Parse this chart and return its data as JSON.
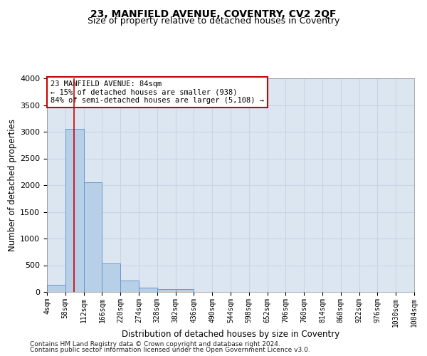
{
  "title1": "23, MANFIELD AVENUE, COVENTRY, CV2 2QF",
  "title2": "Size of property relative to detached houses in Coventry",
  "xlabel": "Distribution of detached houses by size in Coventry",
  "ylabel": "Number of detached properties",
  "footer1": "Contains HM Land Registry data © Crown copyright and database right 2024.",
  "footer2": "Contains public sector information licensed under the Open Government Licence v3.0.",
  "annotation_line1": "23 MANFIELD AVENUE: 84sqm",
  "annotation_line2": "← 15% of detached houses are smaller (938)",
  "annotation_line3": "84% of semi-detached houses are larger (5,108) →",
  "property_size": 84,
  "bin_edges": [
    4,
    58,
    112,
    166,
    220,
    274,
    328,
    382,
    436,
    490,
    544,
    598,
    652,
    706,
    760,
    814,
    868,
    922,
    976,
    1030,
    1084
  ],
  "bar_heights": [
    140,
    3050,
    2050,
    530,
    210,
    80,
    60,
    50,
    0,
    0,
    0,
    0,
    0,
    0,
    0,
    0,
    0,
    0,
    0,
    0
  ],
  "bar_facecolor": "#b8cfe8",
  "bar_edgecolor": "#6699cc",
  "grid_color": "#c8d4e4",
  "background_color": "#dce6f0",
  "vline_color": "#cc0000",
  "annotation_box_color": "#cc0000",
  "ylim": [
    0,
    4000
  ],
  "title1_fontsize": 10,
  "title2_fontsize": 9,
  "xlabel_fontsize": 8.5,
  "ylabel_fontsize": 8.5,
  "tick_fontsize": 7,
  "annotation_fontsize": 7.5,
  "footer_fontsize": 6.5
}
